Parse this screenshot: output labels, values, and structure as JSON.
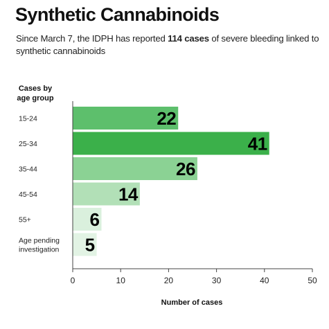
{
  "chart_data": {
    "type": "bar",
    "orientation": "horizontal",
    "title": "Synthetic Cannabinoids",
    "subtitle": {
      "before": "Since March 7, the IDPH has reported ",
      "highlight": "114 cases",
      "after": " of severe bleeding linked to synthetic cannabinoids"
    },
    "category_axis_title": [
      "Cases by",
      "age group"
    ],
    "categories": [
      [
        "15-24"
      ],
      [
        "25-34"
      ],
      [
        "35-44"
      ],
      [
        "45-54"
      ],
      [
        "55+"
      ],
      [
        "Age pending",
        "investigation"
      ]
    ],
    "values": [
      22,
      41,
      26,
      14,
      6,
      5
    ],
    "value_labels": [
      "22",
      "41",
      "26",
      "14",
      "6",
      "5"
    ],
    "bar_colors": [
      "#5dbf6c",
      "#3bb04a",
      "#8bd294",
      "#b2e0b7",
      "#daf0dd",
      "#e2f3e4"
    ],
    "xlabel": "Number of cases",
    "xlim": [
      0,
      50
    ],
    "xticks": [
      0,
      10,
      20,
      30,
      40,
      50
    ],
    "grid": false
  }
}
